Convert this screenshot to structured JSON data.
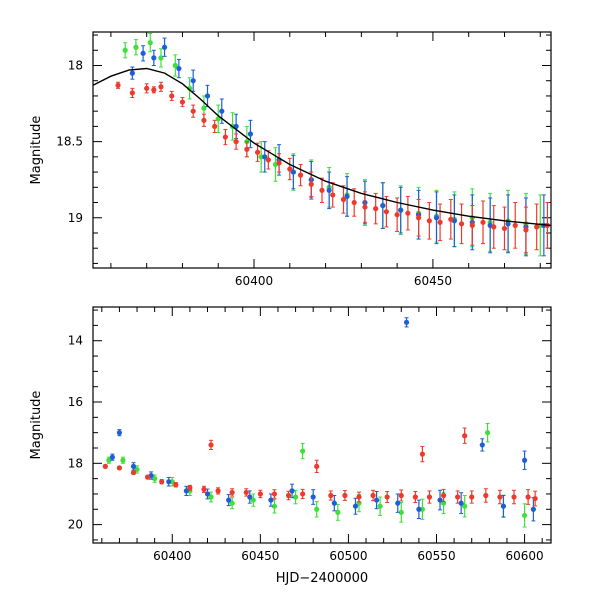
{
  "chart_data": [
    {
      "type": "scatter",
      "title": "",
      "xlabel": "",
      "ylabel": "Magnitude",
      "xlim": [
        60355,
        60483
      ],
      "ylim": [
        19.33,
        17.78
      ],
      "y_inverted": true,
      "grid": false,
      "x_ticks": [
        60400,
        60450
      ],
      "x_tick_labels": [
        "60400",
        "60450"
      ],
      "y_ticks": [
        18,
        18.5,
        19
      ],
      "y_tick_labels": [
        "18",
        "18.5",
        "19"
      ],
      "error_bars": true,
      "model_curve": {
        "color": "#000000",
        "x": [
          60355,
          60360,
          60365,
          60370,
          60375,
          60380,
          60385,
          60390,
          60395,
          60400,
          60405,
          60410,
          60420,
          60430,
          60440,
          60450,
          60460,
          60470,
          60483
        ],
        "y": [
          18.13,
          18.07,
          18.03,
          18.02,
          18.05,
          18.12,
          18.22,
          18.33,
          18.42,
          18.51,
          18.58,
          18.65,
          18.76,
          18.84,
          18.9,
          18.95,
          18.99,
          19.02,
          19.05
        ]
      },
      "series": [
        {
          "name": "",
          "color": "#ee3a2c",
          "x": [
            60362,
            60366,
            60370,
            60372,
            60374,
            60377,
            60380,
            60383,
            60386,
            60389,
            60392,
            60395,
            60398,
            60401,
            60404,
            60407,
            60410,
            60413,
            60416,
            60419,
            60422,
            60425,
            60428,
            60431,
            60434,
            60437,
            60440,
            60443,
            60446,
            60449,
            60452,
            60455,
            60458,
            60461,
            60464,
            60467,
            60470,
            60473,
            60476,
            60479,
            60482
          ],
          "y": [
            18.13,
            18.18,
            18.15,
            18.16,
            18.14,
            18.2,
            18.24,
            18.3,
            18.36,
            18.4,
            18.47,
            18.5,
            18.55,
            18.57,
            18.62,
            18.64,
            18.68,
            18.72,
            18.78,
            18.82,
            18.85,
            18.88,
            18.9,
            18.93,
            18.94,
            18.96,
            18.98,
            18.97,
            19.0,
            19.02,
            19.03,
            19.01,
            19.04,
            19.05,
            19.03,
            19.06,
            19.07,
            19.05,
            19.08,
            19.06,
            19.05
          ],
          "yerr": [
            0.02,
            0.03,
            0.03,
            0.02,
            0.03,
            0.03,
            0.03,
            0.04,
            0.04,
            0.04,
            0.05,
            0.05,
            0.05,
            0.06,
            0.06,
            0.06,
            0.07,
            0.07,
            0.08,
            0.08,
            0.08,
            0.09,
            0.09,
            0.1,
            0.1,
            0.1,
            0.11,
            0.11,
            0.12,
            0.12,
            0.12,
            0.13,
            0.13,
            0.13,
            0.14,
            0.14,
            0.14,
            0.15,
            0.15,
            0.15,
            0.15
          ]
        },
        {
          "name": "",
          "color": "#1f5fd6",
          "x": [
            60366,
            60369,
            60372,
            60375,
            60379,
            60383,
            60387,
            60391,
            60395,
            60399,
            60403,
            60407,
            60411,
            60416,
            60421,
            60426,
            60431,
            60436,
            60441,
            60446,
            60451,
            60456,
            60461,
            60466,
            60471,
            60476,
            60481
          ],
          "y": [
            18.05,
            17.92,
            17.95,
            17.88,
            18.02,
            18.1,
            18.2,
            18.3,
            18.4,
            18.45,
            18.6,
            18.62,
            18.7,
            18.75,
            18.82,
            18.86,
            18.9,
            18.92,
            18.95,
            18.98,
            19.0,
            19.02,
            19.03,
            19.05,
            19.04,
            19.06,
            19.05
          ],
          "yerr": [
            0.04,
            0.05,
            0.05,
            0.06,
            0.06,
            0.07,
            0.07,
            0.08,
            0.08,
            0.09,
            0.1,
            0.1,
            0.11,
            0.12,
            0.12,
            0.13,
            0.14,
            0.15,
            0.15,
            0.16,
            0.17,
            0.17,
            0.18,
            0.18,
            0.19,
            0.19,
            0.2
          ]
        },
        {
          "name": "",
          "color": "#3fe03a",
          "x": [
            60364,
            60367,
            60371,
            60374,
            60378,
            60382,
            60386,
            60390,
            60394,
            60398,
            60402,
            60406,
            60411,
            60416,
            60421,
            60426,
            60431,
            60436,
            60441,
            60446,
            60451,
            60456,
            60461,
            60466,
            60471,
            60476,
            60480
          ],
          "y": [
            17.9,
            17.88,
            17.85,
            17.95,
            18.0,
            18.15,
            18.28,
            18.35,
            18.4,
            18.5,
            18.6,
            18.65,
            18.7,
            18.75,
            18.8,
            18.85,
            18.9,
            18.92,
            18.95,
            18.97,
            18.99,
            19.01,
            19.0,
            19.03,
            19.02,
            19.04,
            19.05
          ],
          "yerr": [
            0.05,
            0.05,
            0.06,
            0.06,
            0.07,
            0.07,
            0.08,
            0.09,
            0.09,
            0.1,
            0.1,
            0.11,
            0.12,
            0.13,
            0.13,
            0.14,
            0.15,
            0.15,
            0.16,
            0.17,
            0.17,
            0.18,
            0.19,
            0.19,
            0.2,
            0.2,
            0.2
          ]
        }
      ]
    },
    {
      "type": "scatter",
      "title": "",
      "xlabel": "HJD−2400000",
      "ylabel": "Magnitude",
      "xlim": [
        60355,
        60615
      ],
      "ylim": [
        20.6,
        12.9
      ],
      "y_inverted": true,
      "grid": false,
      "x_ticks": [
        60400,
        60450,
        60500,
        60550,
        60600
      ],
      "x_tick_labels": [
        "60400",
        "60450",
        "60500",
        "60550",
        "60600"
      ],
      "y_ticks": [
        14,
        16,
        18,
        20
      ],
      "y_tick_labels": [
        "14",
        "16",
        "18",
        "20"
      ],
      "error_bars": true,
      "series": [
        {
          "name": "",
          "color": "#ee3a2c",
          "x": [
            60362,
            60370,
            60378,
            60386,
            60394,
            60402,
            60410,
            60418,
            60422,
            60426,
            60434,
            60442,
            60450,
            60458,
            60466,
            60474,
            60482,
            60490,
            60498,
            60506,
            60514,
            60522,
            60530,
            60538,
            60542,
            60546,
            60554,
            60562,
            60566,
            60570,
            60578,
            60586,
            60594,
            60602,
            60606
          ],
          "y": [
            18.1,
            18.15,
            18.3,
            18.45,
            18.6,
            18.7,
            18.8,
            18.85,
            17.4,
            18.9,
            18.95,
            18.95,
            19.0,
            19.0,
            19.05,
            19.0,
            18.1,
            19.05,
            19.05,
            19.1,
            19.05,
            19.1,
            19.05,
            19.1,
            17.7,
            19.1,
            19.05,
            19.1,
            17.1,
            19.1,
            19.05,
            19.1,
            19.1,
            19.1,
            19.15
          ],
          "yerr": [
            0.05,
            0.05,
            0.06,
            0.06,
            0.07,
            0.07,
            0.08,
            0.1,
            0.15,
            0.1,
            0.12,
            0.12,
            0.12,
            0.14,
            0.14,
            0.15,
            0.2,
            0.15,
            0.16,
            0.16,
            0.17,
            0.18,
            0.18,
            0.18,
            0.25,
            0.2,
            0.2,
            0.2,
            0.25,
            0.2,
            0.22,
            0.22,
            0.22,
            0.24,
            0.24
          ]
        },
        {
          "name": "",
          "color": "#1f5fd6",
          "x": [
            60366,
            60370,
            60378,
            60388,
            60398,
            60408,
            60420,
            60432,
            60444,
            60456,
            60468,
            60480,
            60492,
            60504,
            60516,
            60528,
            60533,
            60540,
            60552,
            60564,
            60576,
            60588,
            60600,
            60605
          ],
          "y": [
            17.8,
            17.0,
            18.1,
            18.4,
            18.6,
            18.9,
            19.0,
            19.2,
            19.1,
            19.2,
            18.9,
            19.1,
            19.3,
            19.4,
            19.2,
            19.3,
            13.4,
            19.5,
            19.2,
            19.3,
            17.4,
            19.4,
            17.9,
            19.5
          ],
          "yerr": [
            0.1,
            0.1,
            0.12,
            0.12,
            0.14,
            0.15,
            0.16,
            0.18,
            0.2,
            0.2,
            0.22,
            0.24,
            0.25,
            0.26,
            0.28,
            0.3,
            0.15,
            0.3,
            0.32,
            0.34,
            0.2,
            0.35,
            0.3,
            0.38
          ]
        },
        {
          "name": "",
          "color": "#3fe03a",
          "x": [
            60364,
            60372,
            60380,
            60390,
            60400,
            60410,
            60422,
            60434,
            60446,
            60458,
            60470,
            60474,
            60482,
            60494,
            60506,
            60518,
            60530,
            60542,
            60554,
            60566,
            60579,
            60588,
            60600
          ],
          "y": [
            17.9,
            17.9,
            18.2,
            18.5,
            18.6,
            18.9,
            19.1,
            19.3,
            19.2,
            19.4,
            19.1,
            17.6,
            19.5,
            19.6,
            19.3,
            19.4,
            19.6,
            19.5,
            19.3,
            19.4,
            17.0,
            19.4,
            19.7
          ],
          "yerr": [
            0.1,
            0.1,
            0.12,
            0.12,
            0.14,
            0.15,
            0.16,
            0.18,
            0.2,
            0.22,
            0.22,
            0.25,
            0.25,
            0.26,
            0.28,
            0.3,
            0.32,
            0.33,
            0.34,
            0.35,
            0.3,
            0.36,
            0.38
          ]
        }
      ]
    }
  ]
}
